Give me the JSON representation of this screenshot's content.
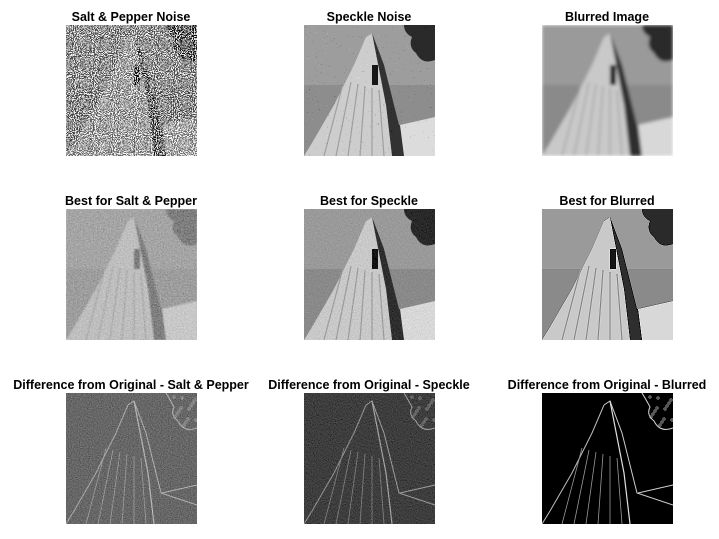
{
  "panels": {
    "salt_pepper": {
      "title": "Salt & Pepper Noise"
    },
    "speckle": {
      "title": "Speckle Noise"
    },
    "blurred": {
      "title": "Blurred Image"
    },
    "best_salt_pepper": {
      "title": "Best for Salt & Pepper"
    },
    "best_speckle": {
      "title": "Best for Speckle"
    },
    "best_blurred": {
      "title": "Best for Blurred"
    },
    "diff_salt_pepper": {
      "title": "Difference from Original - Salt & Pepper"
    },
    "diff_speckle": {
      "title": "Difference from Original - Speckle"
    },
    "diff_blurred": {
      "title": "Difference from Original - Blurred"
    }
  }
}
